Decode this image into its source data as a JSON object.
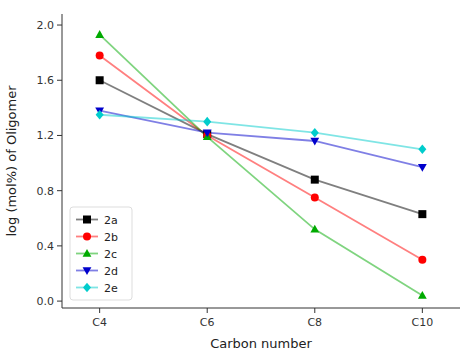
{
  "chart_data": {
    "type": "line",
    "x_label": "Carbon number",
    "y_label": "log (mol%) of Oligomer",
    "categories": [
      "C4",
      "C6",
      "C8",
      "C10"
    ],
    "series": [
      {
        "name": "2a",
        "color": "#000000",
        "marker": "square",
        "line_style": "solid",
        "values": [
          1.6,
          1.21,
          0.88,
          0.63
        ]
      },
      {
        "name": "2b",
        "color": "#ff0000",
        "marker": "circle",
        "line_style": "solid",
        "values": [
          1.78,
          1.2,
          0.75,
          0.3
        ]
      },
      {
        "name": "2c",
        "color": "#00aa00",
        "marker": "triangle-up",
        "line_style": "solid",
        "values": [
          1.93,
          1.19,
          0.52,
          0.04
        ]
      },
      {
        "name": "2d",
        "color": "#0000cc",
        "marker": "triangle-down",
        "line_style": "solid",
        "values": [
          1.38,
          1.22,
          1.16,
          0.97
        ]
      },
      {
        "name": "2e",
        "color": "#00cccc",
        "marker": "diamond",
        "line_style": "solid",
        "values": [
          1.35,
          1.3,
          1.22,
          1.1
        ]
      }
    ],
    "ylim": [
      -0.05,
      2.08
    ],
    "yticks": [
      {
        "value": 0,
        "label": "0.0"
      },
      0.4,
      0.8,
      1.2,
      1.6,
      {
        "value": 2,
        "label": "2.0"
      }
    ],
    "grid": false,
    "legend": "lower left"
  }
}
